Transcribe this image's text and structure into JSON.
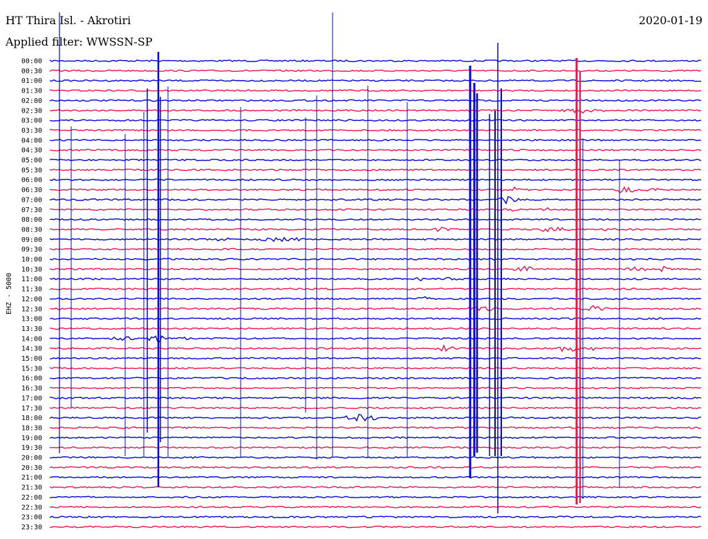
{
  "header": {
    "station": "HT Thira Isl. - Akrotiri",
    "date": "2020-01-19",
    "filter": "Applied filter: WWSSN-SP"
  },
  "chart_data": {
    "type": "line",
    "title": "HT Thira Isl. - Akrotiri",
    "date": "2020-01-19",
    "subtitle": "Applied filter: WWSSN-SP",
    "ylabel": "EHZ - 5000",
    "grid": false,
    "colors": [
      "#0000e0",
      "#f0104a"
    ],
    "rows": [
      "00:00",
      "00:30",
      "01:00",
      "01:30",
      "02:00",
      "02:30",
      "03:00",
      "03:30",
      "04:00",
      "04:30",
      "05:00",
      "05:30",
      "06:00",
      "06:30",
      "07:00",
      "07:30",
      "08:00",
      "08:30",
      "09:00",
      "09:30",
      "10:00",
      "10:30",
      "11:00",
      "11:30",
      "12:00",
      "12:30",
      "13:00",
      "13:30",
      "14:00",
      "14:30",
      "15:00",
      "15:30",
      "16:00",
      "16:30",
      "17:00",
      "17:30",
      "18:00",
      "18:30",
      "19:00",
      "19:30",
      "20:00",
      "20:30",
      "21:00",
      "21:30",
      "22:00",
      "22:30",
      "23:00",
      "23:30"
    ]
  }
}
